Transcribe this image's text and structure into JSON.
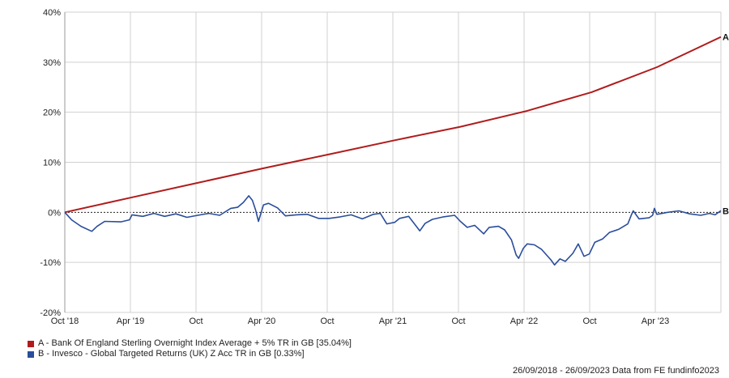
{
  "chart_data": {
    "type": "line",
    "x_ticks": [
      "Oct '18",
      "Apr '19",
      "Oct",
      "Apr '20",
      "Oct",
      "Apr '21",
      "Oct",
      "Apr '22",
      "Oct",
      "Apr '23"
    ],
    "y_ticks": [
      "40%",
      "30%",
      "20%",
      "10%",
      "0%",
      "-10%",
      "-20%"
    ],
    "ylim": [
      -20,
      40
    ],
    "xlim": [
      "2018-09-26",
      "2023-09-26"
    ],
    "grid": true,
    "legend_position": "bottom-left",
    "series": [
      {
        "label": "A",
        "name": "A - Bank Of England Sterling Overnight Index Average + 5% TR in GB [35.04%]",
        "color": "#b01c1c",
        "points": [
          [
            "2018-09-26",
            0
          ],
          [
            "2019-04-01",
            3
          ],
          [
            "2019-10-01",
            5.9
          ],
          [
            "2020-04-01",
            8.8
          ],
          [
            "2020-10-01",
            11.6
          ],
          [
            "2021-04-01",
            14.4
          ],
          [
            "2021-10-01",
            17.1
          ],
          [
            "2022-04-01",
            20.2
          ],
          [
            "2022-10-01",
            24
          ],
          [
            "2023-04-01",
            29
          ],
          [
            "2023-09-26",
            35.04
          ]
        ]
      },
      {
        "label": "B",
        "name": "B - Invesco - Global Targeted Returns (UK) Z Acc TR in GB [0.33%]",
        "color": "#2a4d9b",
        "points": [
          [
            "2018-09-26",
            0
          ],
          [
            "2018-10-15",
            -1.5
          ],
          [
            "2018-11-10",
            -2.8
          ],
          [
            "2018-12-10",
            -3.8
          ],
          [
            "2018-12-25",
            -2.8
          ],
          [
            "2019-01-15",
            -1.8
          ],
          [
            "2019-03-01",
            -1.9
          ],
          [
            "2019-03-25",
            -1.5
          ],
          [
            "2019-04-01",
            -0.5
          ],
          [
            "2019-05-01",
            -0.8
          ],
          [
            "2019-06-01",
            -0.2
          ],
          [
            "2019-07-01",
            -0.8
          ],
          [
            "2019-08-01",
            -0.3
          ],
          [
            "2019-09-01",
            -1
          ],
          [
            "2019-10-01",
            -0.6
          ],
          [
            "2019-11-01",
            -0.2
          ],
          [
            "2019-12-01",
            -0.6
          ],
          [
            "2020-01-01",
            0.8
          ],
          [
            "2020-01-20",
            1
          ],
          [
            "2020-02-05",
            2
          ],
          [
            "2020-02-20",
            3.3
          ],
          [
            "2020-03-01",
            2.4
          ],
          [
            "2020-03-10",
            0.5
          ],
          [
            "2020-03-18",
            -1.8
          ],
          [
            "2020-04-01",
            1.5
          ],
          [
            "2020-04-15",
            1.8
          ],
          [
            "2020-05-10",
            0.9
          ],
          [
            "2020-06-01",
            -0.7
          ],
          [
            "2020-07-01",
            -0.5
          ],
          [
            "2020-08-01",
            -0.4
          ],
          [
            "2020-09-01",
            -1.2
          ],
          [
            "2020-10-01",
            -1.2
          ],
          [
            "2020-11-01",
            -0.9
          ],
          [
            "2020-12-01",
            -0.5
          ],
          [
            "2021-01-01",
            -1.3
          ],
          [
            "2021-02-01",
            -0.4
          ],
          [
            "2021-02-20",
            -0.2
          ],
          [
            "2021-03-10",
            -2.3
          ],
          [
            "2021-04-01",
            -2
          ],
          [
            "2021-04-15",
            -1.2
          ],
          [
            "2021-05-10",
            -0.8
          ],
          [
            "2021-06-10",
            -3.7
          ],
          [
            "2021-06-25",
            -2.2
          ],
          [
            "2021-07-15",
            -1.4
          ],
          [
            "2021-08-15",
            -0.9
          ],
          [
            "2021-09-15",
            -0.6
          ],
          [
            "2021-10-01",
            -1.8
          ],
          [
            "2021-10-20",
            -3
          ],
          [
            "2021-11-10",
            -2.6
          ],
          [
            "2021-12-05",
            -4.3
          ],
          [
            "2021-12-20",
            -3
          ],
          [
            "2022-01-15",
            -2.8
          ],
          [
            "2022-02-01",
            -3.5
          ],
          [
            "2022-02-20",
            -5.5
          ],
          [
            "2022-03-05",
            -8.5
          ],
          [
            "2022-03-12",
            -9.2
          ],
          [
            "2022-03-25",
            -7.2
          ],
          [
            "2022-04-05",
            -6.3
          ],
          [
            "2022-04-25",
            -6.5
          ],
          [
            "2022-05-15",
            -7.4
          ],
          [
            "2022-06-10",
            -9.5
          ],
          [
            "2022-06-20",
            -10.5
          ],
          [
            "2022-07-05",
            -9.3
          ],
          [
            "2022-07-20",
            -9.8
          ],
          [
            "2022-08-10",
            -8.2
          ],
          [
            "2022-08-25",
            -6.3
          ],
          [
            "2022-09-10",
            -8.8
          ],
          [
            "2022-09-25",
            -8.3
          ],
          [
            "2022-10-10",
            -6
          ],
          [
            "2022-11-01",
            -5.3
          ],
          [
            "2022-11-20",
            -4
          ],
          [
            "2022-12-15",
            -3.4
          ],
          [
            "2023-01-10",
            -2.3
          ],
          [
            "2023-01-20",
            -0.5
          ],
          [
            "2023-01-25",
            0.3
          ],
          [
            "2023-02-10",
            -1.3
          ],
          [
            "2023-03-10",
            -1.1
          ],
          [
            "2023-03-20",
            -0.6
          ],
          [
            "2023-03-25",
            0.8
          ],
          [
            "2023-04-01",
            -0.4
          ],
          [
            "2023-05-01",
            0
          ],
          [
            "2023-06-01",
            0.3
          ],
          [
            "2023-07-01",
            -0.3
          ],
          [
            "2023-08-01",
            -0.6
          ],
          [
            "2023-08-25",
            -0.2
          ],
          [
            "2023-09-10",
            -0.5
          ],
          [
            "2023-09-26",
            0.33
          ]
        ]
      }
    ]
  },
  "footer_text": "26/09/2018 - 26/09/2023 Data from FE fundinfo2023"
}
